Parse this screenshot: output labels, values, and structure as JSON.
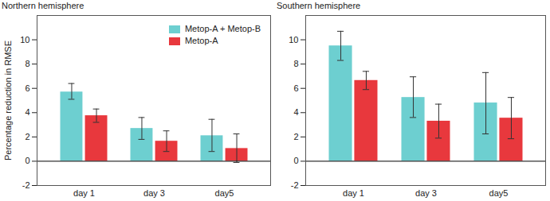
{
  "chart_data": [
    {
      "type": "bar",
      "title": "Northern hemisphere",
      "y_label": "Percentage reduction in RMSE",
      "categories": [
        "day 1",
        "day 3",
        "day5"
      ],
      "series": [
        {
          "name": "Metop-A + Metop-B",
          "color": "#6dcfd0",
          "values": [
            5.7,
            2.7,
            2.1
          ],
          "error_low": [
            5.1,
            1.8,
            0.8
          ],
          "error_high": [
            6.4,
            3.6,
            3.45
          ]
        },
        {
          "name": "Metop-A",
          "color": "#e8383d",
          "values": [
            3.75,
            1.65,
            1.05
          ],
          "error_low": [
            3.2,
            0.8,
            -0.1
          ],
          "error_high": [
            4.3,
            2.5,
            2.25
          ]
        }
      ],
      "ylim": [
        -2,
        12
      ],
      "yticks": [
        -2,
        0,
        2,
        4,
        6,
        8,
        10
      ],
      "legend": "top-right"
    },
    {
      "type": "bar",
      "title": "Southern hemisphere",
      "categories": [
        "day 1",
        "day 3",
        "day5"
      ],
      "series": [
        {
          "name": "Metop-A + Metop-B",
          "color": "#6dcfd0",
          "values": [
            9.5,
            5.25,
            4.8
          ],
          "error_low": [
            8.3,
            3.6,
            2.25
          ],
          "error_high": [
            10.7,
            6.95,
            7.3
          ]
        },
        {
          "name": "Metop-A",
          "color": "#e8383d",
          "values": [
            6.65,
            3.3,
            3.55
          ],
          "error_low": [
            5.9,
            1.9,
            1.85
          ],
          "error_high": [
            7.4,
            4.7,
            5.25
          ]
        }
      ],
      "ylim": [
        -2,
        12
      ],
      "yticks": [
        -2,
        0,
        2,
        4,
        6,
        8,
        10
      ]
    }
  ]
}
